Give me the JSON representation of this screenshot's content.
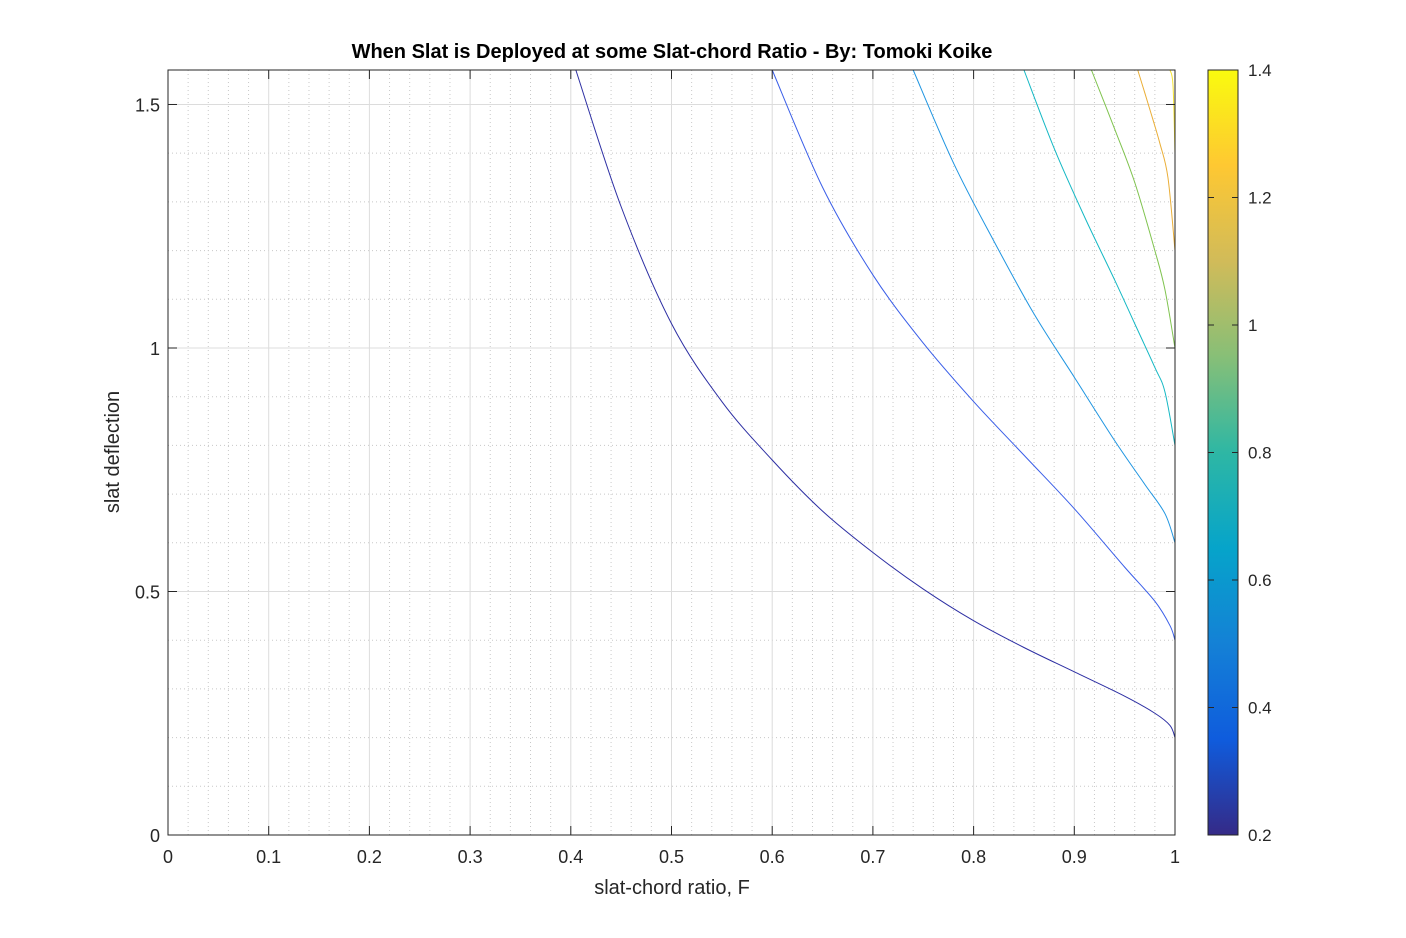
{
  "chart_data": {
    "type": "line",
    "title": "When Slat is Deployed at some Slat-chord Ratio - By: Tomoki Koike",
    "xlabel": "slat-chord ratio, F",
    "ylabel": "slat deflection",
    "xlim": [
      0,
      1
    ],
    "ylim": [
      0,
      1.5708
    ],
    "x_ticks": [
      "0",
      "0.1",
      "0.2",
      "0.3",
      "0.4",
      "0.5",
      "0.6",
      "0.7",
      "0.8",
      "0.9",
      "1"
    ],
    "y_ticks": [
      "0",
      "0.5",
      "1",
      "1.5"
    ],
    "y_tick_values": [
      0,
      0.5,
      1,
      1.5
    ],
    "grid": "on",
    "minor_grid": "on",
    "colorbar": {
      "position": "right",
      "colormap": "parula",
      "range": [
        0.2,
        1.4
      ],
      "ticks": [
        "0.2",
        "0.4",
        "0.6",
        "0.8",
        "1",
        "1.2",
        "1.4"
      ],
      "tick_values": [
        0.2,
        0.4,
        0.6,
        0.8,
        1.0,
        1.2,
        1.4
      ]
    },
    "series": [
      {
        "level": 0.2,
        "color": "#2d2fa3",
        "x": [
          0.405,
          0.45,
          0.5,
          0.55,
          0.6,
          0.65,
          0.7,
          0.75,
          0.8,
          0.85,
          0.9,
          0.95,
          0.98,
          0.995,
          1.0
        ],
        "y": [
          1.5708,
          1.29,
          1.05,
          0.89,
          0.77,
          0.665,
          0.58,
          0.505,
          0.44,
          0.385,
          0.335,
          0.285,
          0.25,
          0.225,
          0.2
        ]
      },
      {
        "level": 0.4,
        "color": "#3a5ee8",
        "x": [
          0.6,
          0.65,
          0.7,
          0.75,
          0.8,
          0.85,
          0.9,
          0.95,
          0.98,
          0.995,
          1.0
        ],
        "y": [
          1.5708,
          1.33,
          1.15,
          1.01,
          0.89,
          0.78,
          0.67,
          0.55,
          0.48,
          0.43,
          0.4
        ]
      },
      {
        "level": 0.6,
        "color": "#1f95e1",
        "x": [
          0.74,
          0.78,
          0.82,
          0.86,
          0.9,
          0.94,
          0.97,
          0.99,
          1.0
        ],
        "y": [
          1.5708,
          1.38,
          1.22,
          1.07,
          0.94,
          0.81,
          0.72,
          0.66,
          0.6
        ]
      },
      {
        "level": 0.8,
        "color": "#14b8c4",
        "x": [
          0.85,
          0.88,
          0.91,
          0.94,
          0.96,
          0.98,
          0.99,
          1.0
        ],
        "y": [
          1.5708,
          1.41,
          1.27,
          1.14,
          1.05,
          0.96,
          0.91,
          0.8
        ]
      },
      {
        "level": 1.0,
        "color": "#7fc34e",
        "x": [
          0.917,
          0.94,
          0.96,
          0.98,
          0.99,
          1.0
        ],
        "y": [
          1.5708,
          1.45,
          1.34,
          1.2,
          1.12,
          1.0
        ]
      },
      {
        "level": 1.2,
        "color": "#eaae37",
        "x": [
          0.963,
          0.975,
          0.985,
          0.993,
          1.0
        ],
        "y": [
          1.5708,
          1.49,
          1.42,
          1.35,
          1.2
        ]
      },
      {
        "level": 1.4,
        "color": "#f4e330",
        "x": [
          0.995,
          0.998,
          1.0
        ],
        "y": [
          1.5708,
          1.54,
          1.4
        ]
      }
    ]
  }
}
